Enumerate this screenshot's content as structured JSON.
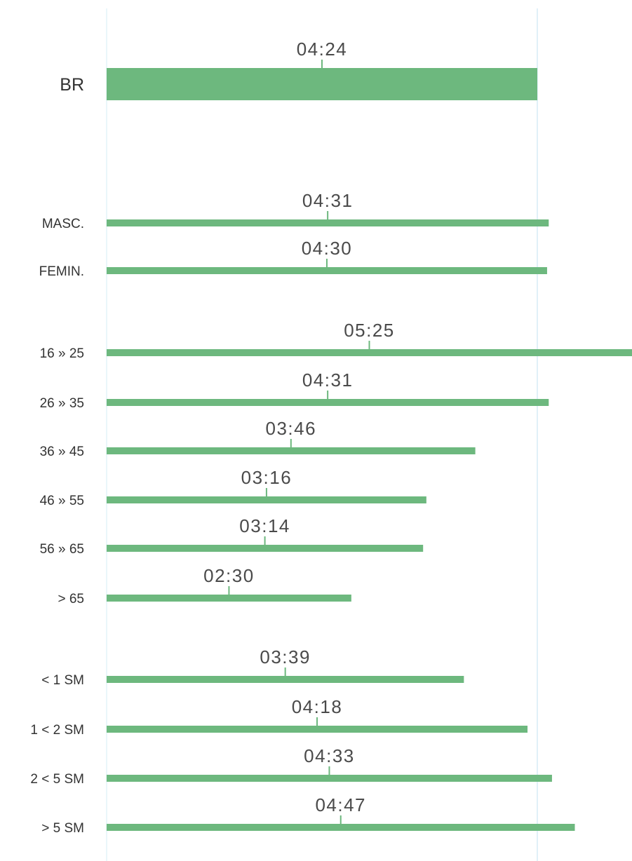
{
  "colors": {
    "bar": "#6db87e",
    "reference_line": "#d6ecf5",
    "text": "#333333",
    "value_text": "#4a4a4a"
  },
  "chart_data": {
    "type": "bar",
    "orientation": "horizontal",
    "unit": "mm:ss",
    "categories": [
      "BR",
      "MASC.",
      "FEMIN.",
      "16 » 25",
      "26 » 35",
      "36 » 45",
      "46 » 55",
      "56 » 65",
      "> 65",
      "< 1 SM",
      "1 < 2 SM",
      "2 < 5 SM",
      "> 5 SM"
    ],
    "groups": [
      [
        "BR"
      ],
      [
        "MASC.",
        "FEMIN."
      ],
      [
        "16 » 25",
        "26 » 35",
        "36 » 45",
        "46 » 55",
        "56 » 65",
        "> 65"
      ],
      [
        "< 1 SM",
        "1 < 2 SM",
        "2 < 5 SM",
        "> 5 SM"
      ]
    ],
    "values_seconds": [
      264,
      271,
      270,
      325,
      271,
      226,
      196,
      194,
      150,
      219,
      258,
      273,
      287
    ],
    "value_labels": [
      "04:24",
      "04:31",
      "04:30",
      "05:25",
      "04:31",
      "03:46",
      "03:16",
      "03:14",
      "02:30",
      "03:39",
      "04:18",
      "04:33",
      "04:47"
    ],
    "reference_value_seconds": 264,
    "title": "",
    "xlabel": "",
    "ylabel": "",
    "grid": false,
    "legend": "none"
  }
}
